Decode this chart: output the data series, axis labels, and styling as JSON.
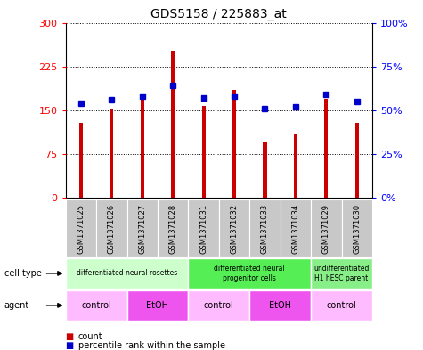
{
  "title": "GDS5158 / 225883_at",
  "samples": [
    "GSM1371025",
    "GSM1371026",
    "GSM1371027",
    "GSM1371028",
    "GSM1371031",
    "GSM1371032",
    "GSM1371033",
    "GSM1371034",
    "GSM1371029",
    "GSM1371030"
  ],
  "counts": [
    128,
    152,
    168,
    252,
    158,
    185,
    95,
    108,
    170,
    128
  ],
  "percentiles": [
    54,
    56,
    58,
    64,
    57,
    58,
    51,
    52,
    59,
    55
  ],
  "ylim_left": [
    0,
    300
  ],
  "ylim_right": [
    0,
    100
  ],
  "yticks_left": [
    0,
    75,
    150,
    225,
    300
  ],
  "yticks_right": [
    0,
    25,
    50,
    75,
    100
  ],
  "ytick_labels_right": [
    "0%",
    "25%",
    "50%",
    "75%",
    "100%"
  ],
  "bar_color": "#cc0000",
  "dot_color": "#0000cc",
  "cell_type_groups": [
    {
      "label": "differentiated neural rosettes",
      "start": 0,
      "end": 4,
      "color": "#ccffcc"
    },
    {
      "label": "differentiated neural\nprogenitor cells",
      "start": 4,
      "end": 8,
      "color": "#55ee55"
    },
    {
      "label": "undifferentiated\nH1 hESC parent",
      "start": 8,
      "end": 10,
      "color": "#88ee88"
    }
  ],
  "agent_groups": [
    {
      "label": "control",
      "start": 0,
      "end": 2,
      "color": "#ffbbff"
    },
    {
      "label": "EtOH",
      "start": 2,
      "end": 4,
      "color": "#ee55ee"
    },
    {
      "label": "control",
      "start": 4,
      "end": 6,
      "color": "#ffbbff"
    },
    {
      "label": "EtOH",
      "start": 6,
      "end": 8,
      "color": "#ee55ee"
    },
    {
      "label": "control",
      "start": 8,
      "end": 10,
      "color": "#ffbbff"
    }
  ],
  "tick_bg_color": "#c8c8c8",
  "bar_width": 0.12
}
